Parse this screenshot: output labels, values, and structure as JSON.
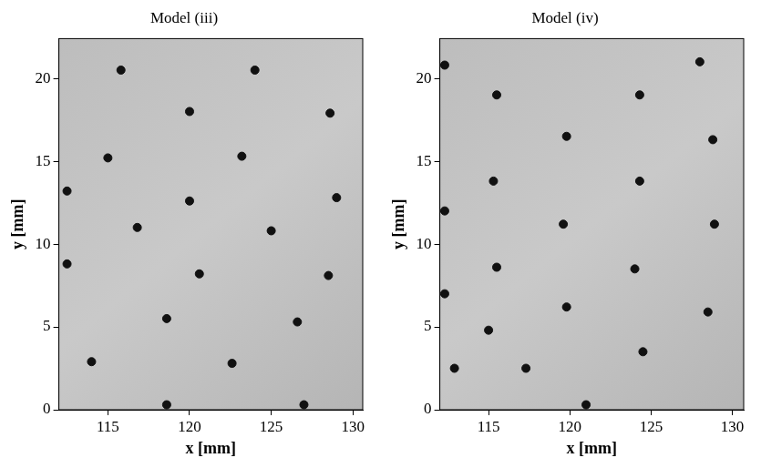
{
  "chart_data": [
    {
      "type": "scatter",
      "title": "Model (iii)",
      "x_label": "x [mm]",
      "y_label": "y [mm]",
      "xlim": [
        112,
        130.6
      ],
      "ylim": [
        0,
        22.4
      ],
      "xticks": [
        115,
        120,
        125,
        130
      ],
      "yticks": [
        0,
        5,
        10,
        15,
        20
      ],
      "grid": false,
      "series": [
        {
          "color": "#111111",
          "marker": "circle",
          "x": [
            115.8,
            124.0,
            120.0,
            128.6,
            115.0,
            123.2,
            112.5,
            120.0,
            129.0,
            116.8,
            125.0,
            112.5,
            120.6,
            128.5,
            118.6,
            126.6,
            114.0,
            122.6,
            118.6,
            127.0
          ],
          "y": [
            20.5,
            20.5,
            18.0,
            17.9,
            15.2,
            15.3,
            13.2,
            12.6,
            12.8,
            11.0,
            10.8,
            8.8,
            8.2,
            8.1,
            5.5,
            5.3,
            2.9,
            2.8,
            0.3,
            0.3
          ]
        }
      ]
    },
    {
      "type": "scatter",
      "title": "Model (iv)",
      "x_label": "x [mm]",
      "y_label": "y [mm]",
      "xlim": [
        112,
        130.7
      ],
      "ylim": [
        0,
        22.4
      ],
      "xticks": [
        115,
        120,
        125,
        130
      ],
      "yticks": [
        0,
        5,
        10,
        15,
        20
      ],
      "grid": false,
      "series": [
        {
          "color": "#111111",
          "marker": "circle",
          "x": [
            112.3,
            115.5,
            119.8,
            124.3,
            128.0,
            115.3,
            112.3,
            119.6,
            124.3,
            128.8,
            128.9,
            124.0,
            115.5,
            112.3,
            119.8,
            128.5,
            115.0,
            112.9,
            117.3,
            124.5,
            121.0
          ],
          "y": [
            20.8,
            19.0,
            16.5,
            19.0,
            21.0,
            13.8,
            12.0,
            11.2,
            13.8,
            16.3,
            11.2,
            8.5,
            8.6,
            7.0,
            6.2,
            5.9,
            4.8,
            2.5,
            2.5,
            3.5,
            0.3
          ]
        }
      ]
    }
  ]
}
